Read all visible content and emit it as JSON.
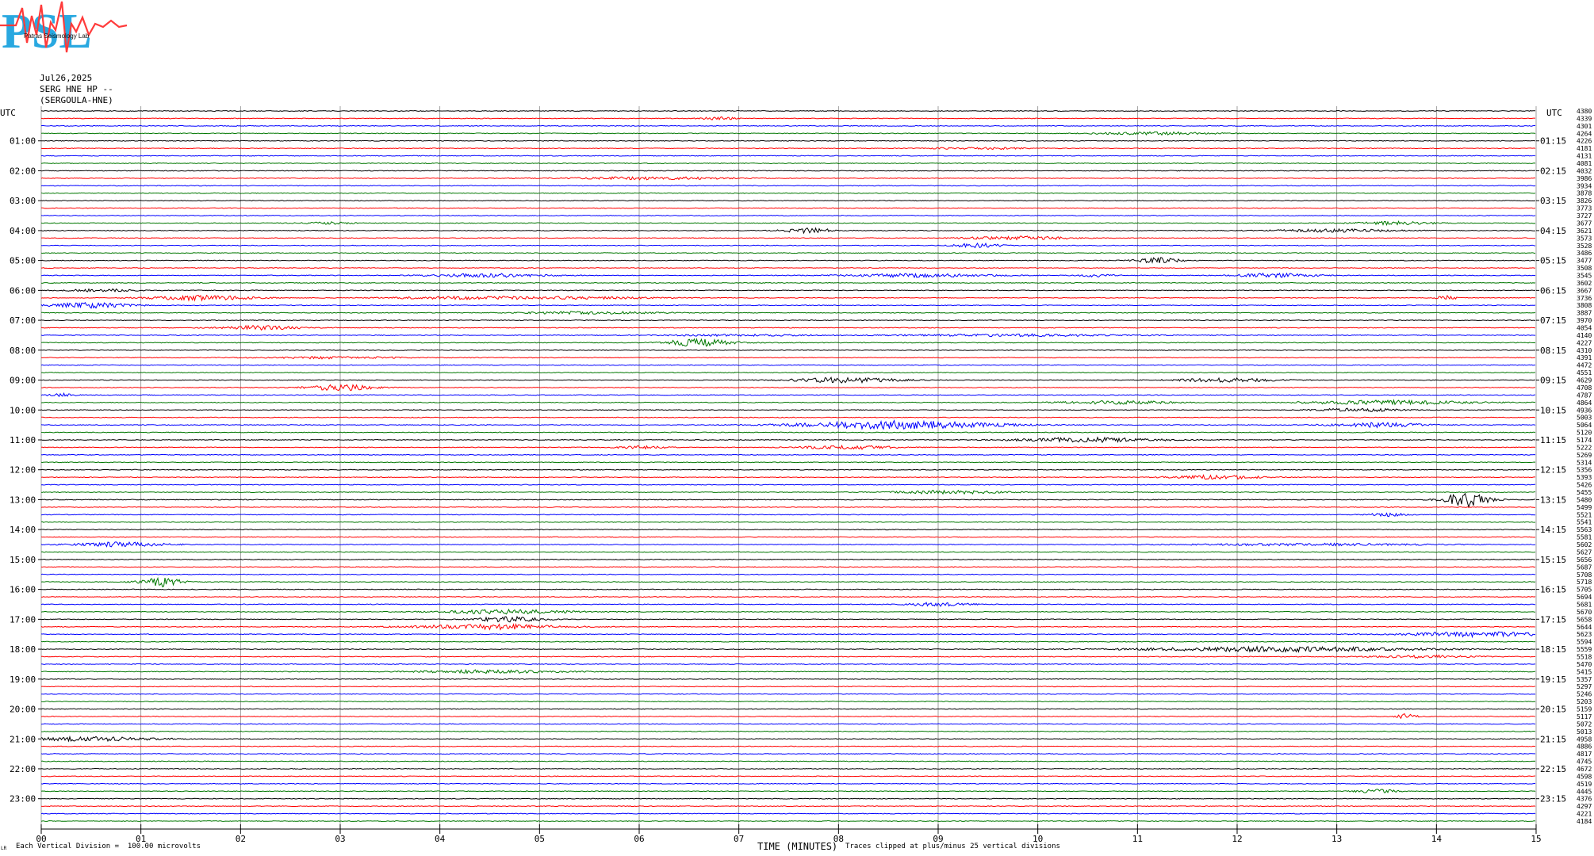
{
  "header": {
    "logo_text": "PSL",
    "logo_subtext": "Patras Seismology Lab",
    "date": "Jul26,2025",
    "station": "SERG HNE HP --",
    "station_name": "(SERGOULA-HNE)"
  },
  "footer": {
    "xlabel": "TIME (MINUTES)",
    "division_note": "Each Vertical Division =  100.00 microvolts",
    "clip_note": "Traces clipped at plus/minus 25 vertical divisions",
    "corner_mark": "LR"
  },
  "colors": {
    "trace_cycle": [
      "#000000",
      "#ff0000",
      "#0000ff",
      "#007700"
    ],
    "grid": "#888888"
  },
  "chart_data": {
    "type": "line",
    "title": "",
    "xlabel": "TIME (MINUTES)",
    "ylabel": "",
    "xlim": [
      0,
      15
    ],
    "x_ticks": [
      "00",
      "01",
      "02",
      "03",
      "04",
      "05",
      "06",
      "07",
      "08",
      "09",
      "10",
      "11",
      "12",
      "13",
      "14",
      "15"
    ],
    "left_axis_label": "UTC",
    "right_axis_label": "UTC",
    "left_ticks": [
      "01:00",
      "02:00",
      "03:00",
      "04:00",
      "05:00",
      "06:00",
      "07:00",
      "08:00",
      "09:00",
      "10:00",
      "11:00",
      "12:00",
      "13:00",
      "14:00",
      "15:00",
      "16:00",
      "17:00",
      "18:00",
      "19:00",
      "20:00",
      "21:00",
      "22:00",
      "23:00"
    ],
    "right_ticks": [
      "01:15",
      "02:15",
      "03:15",
      "04:15",
      "05:15",
      "06:15",
      "07:15",
      "08:15",
      "09:15",
      "10:15",
      "11:15",
      "12:15",
      "13:15",
      "14:15",
      "15:15",
      "16:15",
      "17:15",
      "18:15",
      "19:15",
      "20:15",
      "21:15",
      "22:15",
      "23:15"
    ],
    "trace_counts": [
      "4380",
      "4339",
      "4301",
      "4264",
      "4226",
      "4181",
      "4131",
      "4081",
      "4032",
      "3986",
      "3934",
      "3878",
      "3826",
      "3773",
      "3727",
      "3677",
      "3621",
      "3573",
      "3528",
      "3486",
      "3477",
      "3508",
      "3545",
      "3602",
      "3667",
      "3736",
      "3808",
      "3887",
      "3970",
      "4054",
      "4140",
      "4227",
      "4310",
      "4391",
      "4472",
      "4551",
      "4629",
      "4708",
      "4787",
      "4864",
      "4936",
      "5003",
      "5064",
      "5120",
      "5174",
      "5222",
      "5269",
      "5314",
      "5356",
      "5393",
      "5426",
      "5455",
      "5480",
      "5499",
      "5521",
      "5541",
      "5563",
      "5581",
      "5602",
      "5627",
      "5656",
      "5687",
      "5708",
      "5718",
      "5705",
      "5694",
      "5681",
      "5670",
      "5658",
      "5644",
      "5623",
      "5594",
      "5559",
      "5518",
      "5470",
      "5415",
      "5357",
      "5297",
      "5246",
      "5203",
      "5159",
      "5117",
      "5072",
      "5013",
      "4958",
      "4886",
      "4817",
      "4745",
      "4672",
      "4598",
      "4519",
      "4445",
      "4376",
      "4297",
      "4221",
      "4184"
    ],
    "events": [
      {
        "trace": 1,
        "minute": 6.8,
        "amp": 0.6,
        "width": 0.25
      },
      {
        "trace": 3,
        "minute": 11.2,
        "amp": 0.5,
        "width": 0.9
      },
      {
        "trace": 5,
        "minute": 9.4,
        "amp": 0.4,
        "width": 0.7
      },
      {
        "trace": 9,
        "minute": 6.1,
        "amp": 0.5,
        "width": 1.2
      },
      {
        "trace": 15,
        "minute": 13.6,
        "amp": 0.6,
        "width": 0.6
      },
      {
        "trace": 15,
        "minute": 2.9,
        "amp": 0.4,
        "width": 0.4
      },
      {
        "trace": 16,
        "minute": 7.7,
        "amp": 0.9,
        "width": 0.4
      },
      {
        "trace": 16,
        "minute": 13.0,
        "amp": 0.6,
        "width": 0.9
      },
      {
        "trace": 17,
        "minute": 9.8,
        "amp": 0.7,
        "width": 0.8
      },
      {
        "trace": 18,
        "minute": 9.4,
        "amp": 0.9,
        "width": 0.35
      },
      {
        "trace": 20,
        "minute": 11.2,
        "amp": 1.0,
        "width": 0.35
      },
      {
        "trace": 22,
        "minute": 4.5,
        "amp": 0.7,
        "width": 0.9
      },
      {
        "trace": 22,
        "minute": 8.8,
        "amp": 0.7,
        "width": 1.1
      },
      {
        "trace": 22,
        "minute": 12.4,
        "amp": 0.9,
        "width": 0.6
      },
      {
        "trace": 22,
        "minute": 10.6,
        "amp": 0.5,
        "width": 0.3
      },
      {
        "trace": 24,
        "minute": 0.6,
        "amp": 0.5,
        "width": 0.5
      },
      {
        "trace": 25,
        "minute": 1.6,
        "amp": 0.9,
        "width": 0.8
      },
      {
        "trace": 25,
        "minute": 4.2,
        "amp": 0.5,
        "width": 1.1
      },
      {
        "trace": 25,
        "minute": 5.4,
        "amp": 0.4,
        "width": 1.3
      },
      {
        "trace": 25,
        "minute": 14.1,
        "amp": 0.8,
        "width": 0.15
      },
      {
        "trace": 26,
        "minute": 0.5,
        "amp": 1.0,
        "width": 0.6
      },
      {
        "trace": 27,
        "minute": 5.5,
        "amp": 0.5,
        "width": 1.0
      },
      {
        "trace": 29,
        "minute": 2.2,
        "amp": 0.8,
        "width": 0.6
      },
      {
        "trace": 30,
        "minute": 7.0,
        "amp": 0.3,
        "width": 1.2
      },
      {
        "trace": 30,
        "minute": 9.8,
        "amp": 0.4,
        "width": 1.8
      },
      {
        "trace": 31,
        "minute": 6.6,
        "amp": 1.6,
        "width": 0.5
      },
      {
        "trace": 33,
        "minute": 3.0,
        "amp": 0.4,
        "width": 1.0
      },
      {
        "trace": 36,
        "minute": 8.1,
        "amp": 1.0,
        "width": 0.8
      },
      {
        "trace": 36,
        "minute": 11.9,
        "amp": 0.7,
        "width": 0.8
      },
      {
        "trace": 37,
        "minute": 3.0,
        "amp": 1.2,
        "width": 0.5
      },
      {
        "trace": 38,
        "minute": 0.2,
        "amp": 0.6,
        "width": 0.2
      },
      {
        "trace": 39,
        "minute": 10.8,
        "amp": 0.6,
        "width": 0.9
      },
      {
        "trace": 39,
        "minute": 13.5,
        "amp": 0.8,
        "width": 1.3
      },
      {
        "trace": 40,
        "minute": 13.2,
        "amp": 0.7,
        "width": 0.6
      },
      {
        "trace": 42,
        "minute": 8.6,
        "amp": 1.6,
        "width": 1.5
      },
      {
        "trace": 42,
        "minute": 13.4,
        "amp": 0.9,
        "width": 0.7
      },
      {
        "trace": 44,
        "minute": 10.5,
        "amp": 0.9,
        "width": 1.1
      },
      {
        "trace": 45,
        "minute": 8.1,
        "amp": 0.7,
        "width": 0.7
      },
      {
        "trace": 45,
        "minute": 6.0,
        "amp": 0.5,
        "width": 0.4
      },
      {
        "trace": 49,
        "minute": 11.8,
        "amp": 0.8,
        "width": 0.7
      },
      {
        "trace": 51,
        "minute": 9.1,
        "amp": 0.6,
        "width": 0.9
      },
      {
        "trace": 52,
        "minute": 14.3,
        "amp": 2.8,
        "width": 0.35
      },
      {
        "trace": 54,
        "minute": 13.5,
        "amp": 0.6,
        "width": 0.3
      },
      {
        "trace": 58,
        "minute": 0.8,
        "amp": 0.9,
        "width": 0.7
      },
      {
        "trace": 58,
        "minute": 12.7,
        "amp": 0.4,
        "width": 1.8
      },
      {
        "trace": 63,
        "minute": 1.2,
        "amp": 2.0,
        "width": 0.3
      },
      {
        "trace": 66,
        "minute": 9.0,
        "amp": 0.7,
        "width": 0.5
      },
      {
        "trace": 67,
        "minute": 4.7,
        "amp": 0.8,
        "width": 1.0
      },
      {
        "trace": 68,
        "minute": 4.7,
        "amp": 1.0,
        "width": 0.5
      },
      {
        "trace": 69,
        "minute": 4.5,
        "amp": 1.0,
        "width": 1.1
      },
      {
        "trace": 70,
        "minute": 14.4,
        "amp": 0.9,
        "width": 1.1
      },
      {
        "trace": 72,
        "minute": 12.4,
        "amp": 0.9,
        "width": 2.2
      },
      {
        "trace": 73,
        "minute": 13.9,
        "amp": 0.5,
        "width": 0.8
      },
      {
        "trace": 75,
        "minute": 4.5,
        "amp": 0.6,
        "width": 1.1
      },
      {
        "trace": 81,
        "minute": 13.7,
        "amp": 1.0,
        "width": 0.15
      },
      {
        "trace": 84,
        "minute": 0.5,
        "amp": 0.8,
        "width": 1.0
      },
      {
        "trace": 91,
        "minute": 13.4,
        "amp": 0.8,
        "width": 0.3
      }
    ]
  }
}
